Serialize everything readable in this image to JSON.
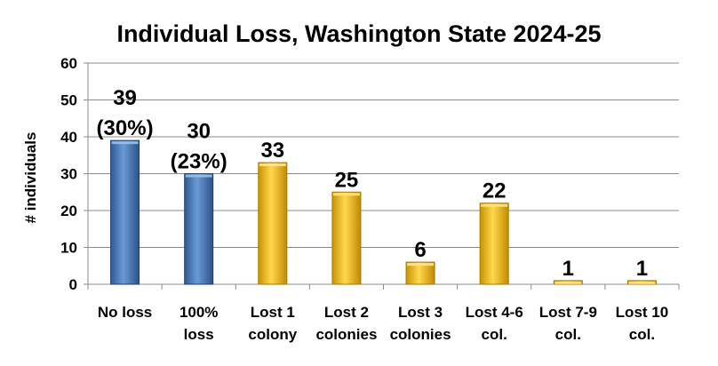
{
  "chart_data": {
    "type": "bar",
    "title": "Individual Loss, Washington State 2024-25",
    "ylabel": "# individuals",
    "xlabel": "",
    "ylim": [
      0,
      60
    ],
    "yticks": [
      0,
      10,
      20,
      30,
      40,
      50,
      60
    ],
    "grid": true,
    "legend": "none",
    "categories": [
      [
        "No loss"
      ],
      [
        "100%",
        "loss"
      ],
      [
        "Lost 1",
        "colony"
      ],
      [
        "Lost 2",
        "colonies"
      ],
      [
        "Lost 3",
        "colonies"
      ],
      [
        "Lost 4-6",
        "col."
      ],
      [
        "Lost 7-9",
        "col."
      ],
      [
        "Lost 10",
        "col."
      ]
    ],
    "values": [
      39,
      30,
      33,
      25,
      6,
      22,
      1,
      1
    ],
    "data_labels": [
      [
        "39",
        "(30%)"
      ],
      [
        "30",
        "(23%)"
      ],
      [
        "33"
      ],
      [
        "25"
      ],
      [
        "6"
      ],
      [
        "22"
      ],
      [
        "1"
      ],
      [
        "1"
      ]
    ],
    "bar_colors": [
      "#4f81bd",
      "#4f81bd",
      "#ffc000",
      "#ffc000",
      "#ffc000",
      "#ffc000",
      "#ffc000",
      "#ffc000"
    ]
  }
}
